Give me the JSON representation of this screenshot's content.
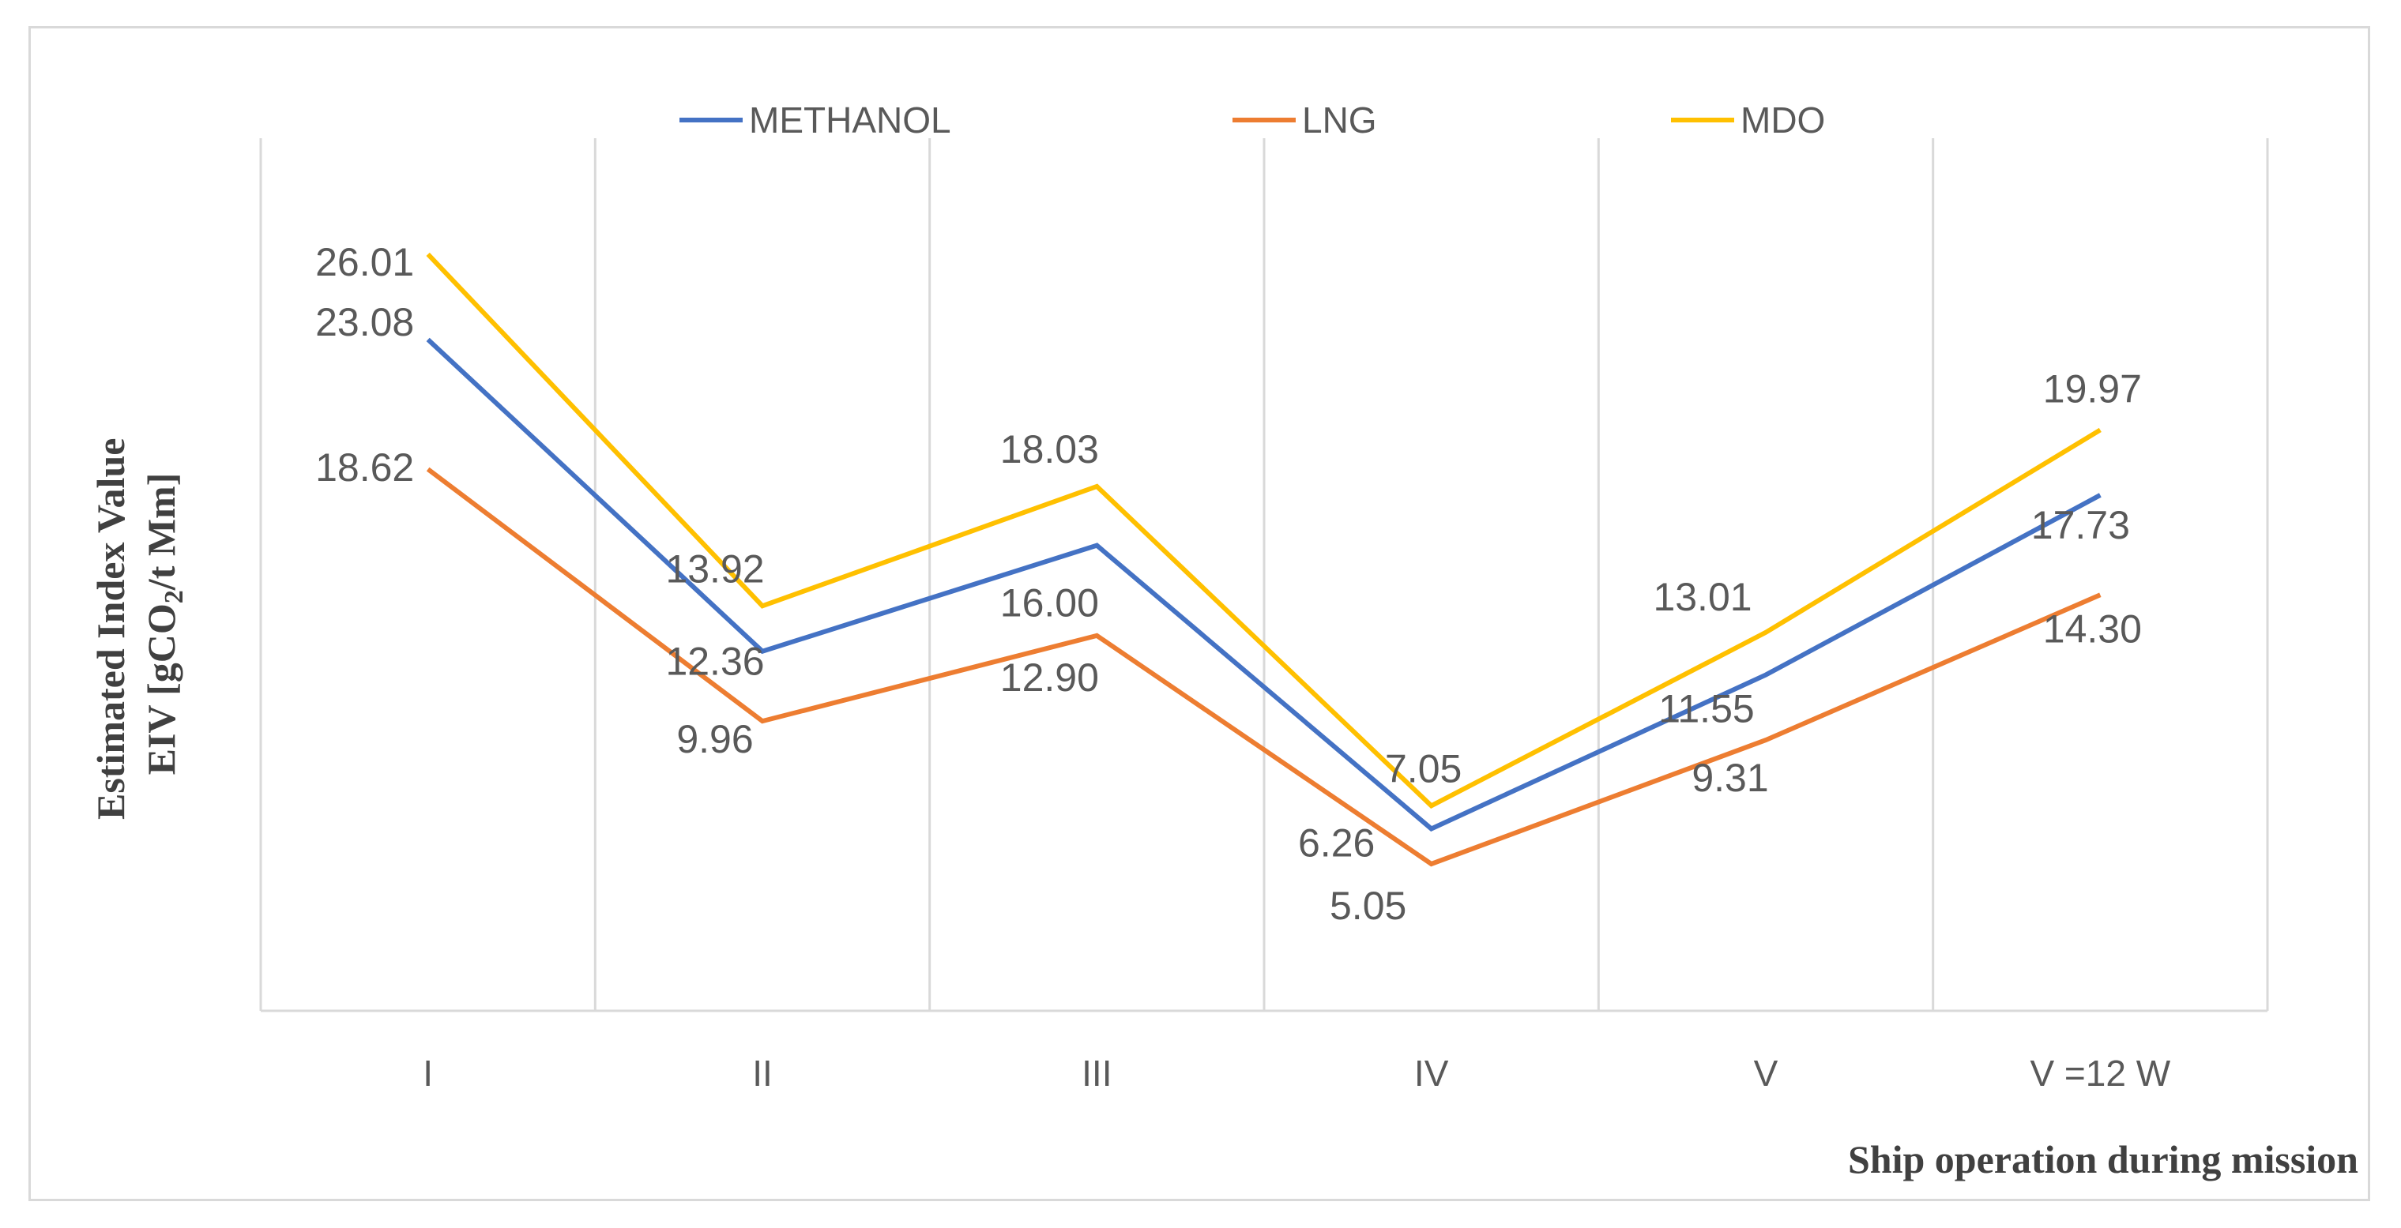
{
  "chart_data": {
    "type": "line",
    "title": "",
    "ylabel_line1": "Estimated Index Value",
    "ylabel_line2_prefix": "EIV [gCO",
    "ylabel_line2_sub": "2",
    "ylabel_line2_suffix": "/t Mm]",
    "xlabel": "Ship operation  during mission",
    "categories": [
      "I",
      "II",
      "III",
      "IV",
      "V",
      "V =12 W"
    ],
    "ylim": [
      0,
      30
    ],
    "grid": "vertical",
    "legend_position": "top-center",
    "series": [
      {
        "name": "METHANOL",
        "color": "#4472c4",
        "values": [
          23.08,
          12.36,
          16.0,
          6.26,
          11.55,
          17.73
        ],
        "labels": [
          "23.08",
          "12.36",
          "16.00",
          "6.26",
          "11.55",
          "17.73"
        ]
      },
      {
        "name": "LNG",
        "color": "#ed7d31",
        "values": [
          18.62,
          9.96,
          12.9,
          5.05,
          9.31,
          14.3
        ],
        "labels": [
          "18.62",
          "9.96",
          "12.90",
          "5.05",
          "9.31",
          "14.30"
        ]
      },
      {
        "name": "MDO",
        "color": "#ffc000",
        "values": [
          26.01,
          13.92,
          18.03,
          7.05,
          13.01,
          19.97
        ],
        "labels": [
          "26.01",
          "13.92",
          "18.03",
          "7.05",
          "13.01",
          "19.97"
        ]
      }
    ]
  }
}
